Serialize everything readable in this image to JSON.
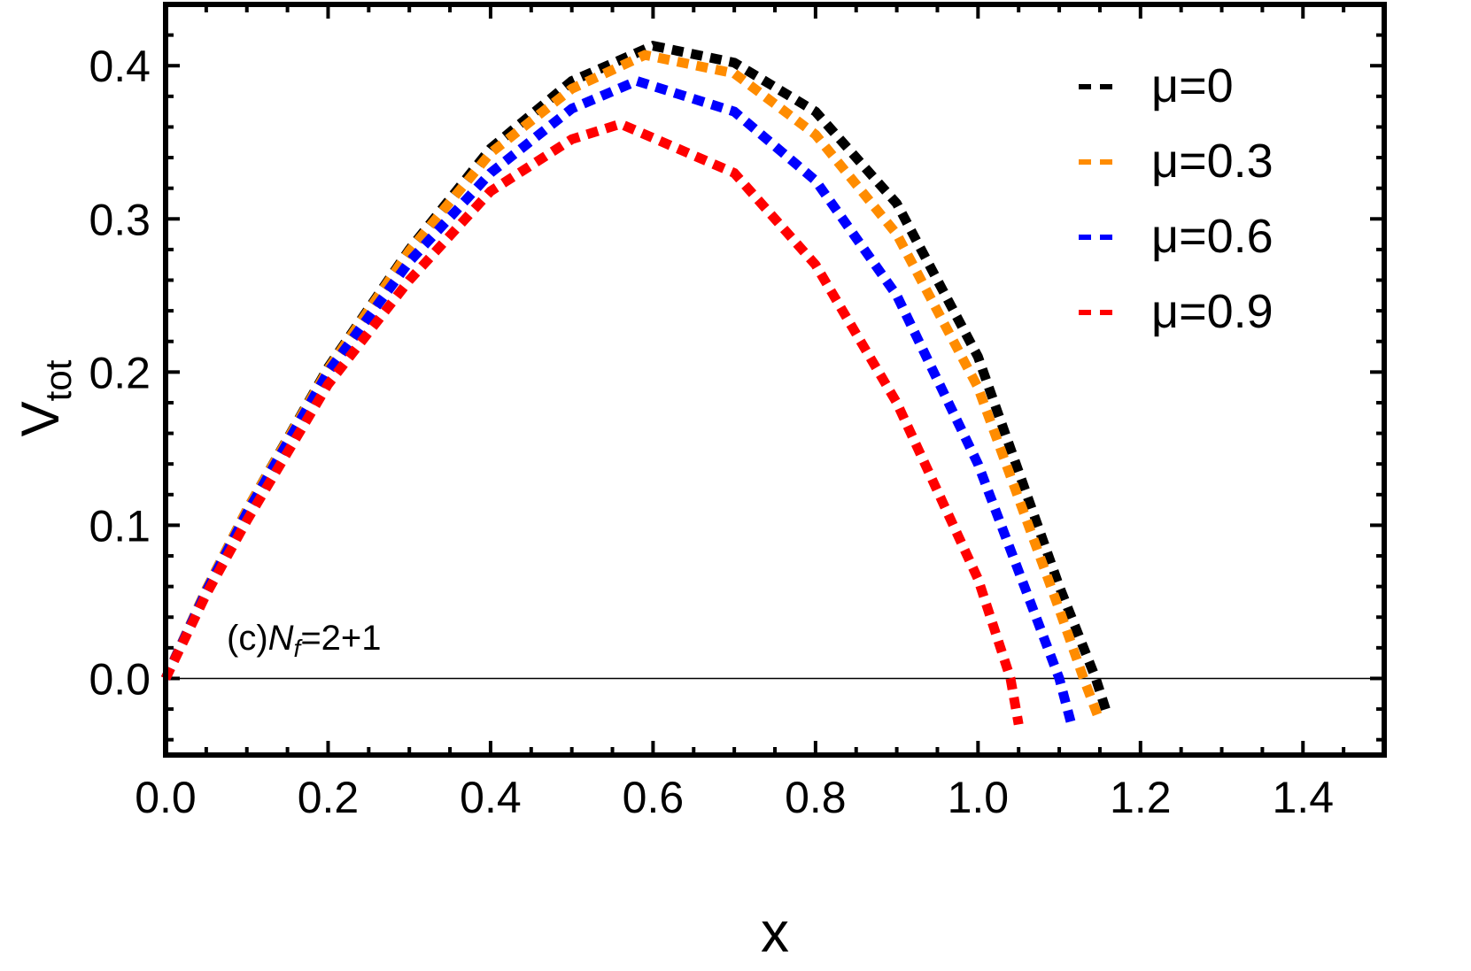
{
  "chart_data": {
    "type": "line",
    "xlabel": "x",
    "ylabel": "V",
    "ylabel_subscript": "tot",
    "xlim": [
      0,
      1.5
    ],
    "ylim": [
      -0.05,
      0.44
    ],
    "xticks": [
      "0.0",
      "0.2",
      "0.4",
      "0.6",
      "0.8",
      "1.0",
      "1.2",
      "1.4"
    ],
    "yticks": [
      "0.0",
      "0.1",
      "0.2",
      "0.3",
      "0.4"
    ],
    "grid": false,
    "legend_position": "top-right",
    "annotation": {
      "prefix": "(c)",
      "symbol": "N",
      "subscript": "f",
      "suffix": "=2+1"
    },
    "line_style": "dotted",
    "series": [
      {
        "name": "μ=0",
        "color": "#000000",
        "x": [
          0,
          0.05,
          0.1,
          0.2,
          0.3,
          0.4,
          0.5,
          0.6,
          0.7,
          0.8,
          0.9,
          1.0,
          1.1,
          1.145,
          1.16
        ],
        "y": [
          0,
          0.058,
          0.11,
          0.203,
          0.28,
          0.346,
          0.39,
          0.413,
          0.402,
          0.37,
          0.31,
          0.21,
          0.06,
          0,
          -0.025
        ]
      },
      {
        "name": "μ=0.3",
        "color": "#ff8c00",
        "x": [
          0,
          0.05,
          0.1,
          0.2,
          0.3,
          0.4,
          0.5,
          0.59,
          0.7,
          0.8,
          0.9,
          1.0,
          1.1,
          1.13,
          1.15
        ],
        "y": [
          0,
          0.058,
          0.11,
          0.202,
          0.279,
          0.343,
          0.385,
          0.407,
          0.395,
          0.355,
          0.29,
          0.19,
          0.045,
          0,
          -0.028
        ]
      },
      {
        "name": "μ=0.6",
        "color": "#0000ff",
        "x": [
          0,
          0.05,
          0.1,
          0.2,
          0.3,
          0.4,
          0.5,
          0.58,
          0.7,
          0.8,
          0.9,
          1.0,
          1.1,
          1.115
        ],
        "y": [
          0,
          0.057,
          0.108,
          0.2,
          0.272,
          0.33,
          0.372,
          0.39,
          0.37,
          0.325,
          0.25,
          0.14,
          0,
          -0.03
        ]
      },
      {
        "name": "μ=0.9",
        "color": "#ff0000",
        "x": [
          0,
          0.05,
          0.1,
          0.2,
          0.3,
          0.4,
          0.5,
          0.56,
          0.7,
          0.8,
          0.9,
          1.0,
          1.04,
          1.05
        ],
        "y": [
          0,
          0.055,
          0.103,
          0.192,
          0.26,
          0.318,
          0.352,
          0.362,
          0.33,
          0.27,
          0.18,
          0.065,
          0,
          -0.03
        ]
      }
    ]
  }
}
